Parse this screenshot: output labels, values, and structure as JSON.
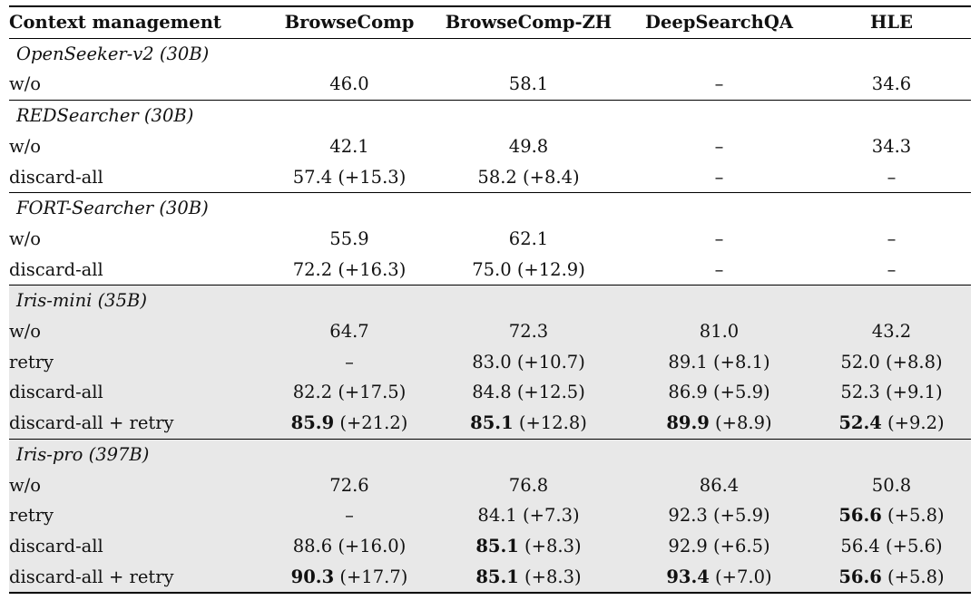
{
  "header": [
    "Context management",
    "BrowseComp",
    "BrowseComp-ZH",
    "DeepSearchQA",
    "HLE"
  ],
  "groups": [
    {
      "name": "OpenSeeker-v2 (30B)",
      "rows": [
        {
          "label": "w/o",
          "cells": [
            {
              "main": "46.0",
              "delta": ""
            },
            {
              "main": "58.1",
              "delta": ""
            },
            {
              "main": "–",
              "delta": ""
            },
            {
              "main": "34.6",
              "delta": ""
            }
          ]
        }
      ]
    },
    {
      "name": "REDSearcher (30B)",
      "rows": [
        {
          "label": "w/o",
          "cells": [
            {
              "main": "42.1",
              "delta": ""
            },
            {
              "main": "49.8",
              "delta": ""
            },
            {
              "main": "–",
              "delta": ""
            },
            {
              "main": "34.3",
              "delta": ""
            }
          ]
        },
        {
          "label": "discard-all",
          "cells": [
            {
              "main": "57.4",
              "delta": " (+15.3)"
            },
            {
              "main": "58.2",
              "delta": " (+8.4)"
            },
            {
              "main": "–",
              "delta": ""
            },
            {
              "main": "–",
              "delta": ""
            }
          ]
        }
      ]
    },
    {
      "name": "FORT-Searcher (30B)",
      "rows": [
        {
          "label": "w/o",
          "cells": [
            {
              "main": "55.9",
              "delta": ""
            },
            {
              "main": "62.1",
              "delta": ""
            },
            {
              "main": "–",
              "delta": ""
            },
            {
              "main": "–",
              "delta": ""
            }
          ]
        },
        {
          "label": "discard-all",
          "cells": [
            {
              "main": "72.2",
              "delta": " (+16.3)"
            },
            {
              "main": "75.0",
              "delta": " (+12.9)"
            },
            {
              "main": "–",
              "delta": ""
            },
            {
              "main": "–",
              "delta": ""
            }
          ]
        }
      ]
    },
    {
      "name": "Iris-mini (35B)",
      "shaded": true,
      "rows": [
        {
          "label": "w/o",
          "cells": [
            {
              "main": "64.7",
              "delta": ""
            },
            {
              "main": "72.3",
              "delta": ""
            },
            {
              "main": "81.0",
              "delta": ""
            },
            {
              "main": "43.2",
              "delta": ""
            }
          ]
        },
        {
          "label": "retry",
          "cells": [
            {
              "main": "–",
              "delta": ""
            },
            {
              "main": "83.0",
              "delta": " (+10.7)"
            },
            {
              "main": "89.1",
              "delta": " (+8.1)"
            },
            {
              "main": "52.0",
              "delta": " (+8.8)"
            }
          ]
        },
        {
          "label": "discard-all",
          "cells": [
            {
              "main": "82.2",
              "delta": " (+17.5)"
            },
            {
              "main": "84.8",
              "delta": " (+12.5)"
            },
            {
              "main": "86.9",
              "delta": " (+5.9)"
            },
            {
              "main": "52.3",
              "delta": " (+9.1)"
            }
          ]
        },
        {
          "label": "discard-all + retry",
          "cells": [
            {
              "main": "85.9",
              "delta": " (+21.2)",
              "bold": true
            },
            {
              "main": "85.1",
              "delta": " (+12.8)",
              "bold": true
            },
            {
              "main": "89.9",
              "delta": " (+8.9)",
              "bold": true
            },
            {
              "main": "52.4",
              "delta": " (+9.2)",
              "bold": true
            }
          ]
        }
      ]
    },
    {
      "name": "Iris-pro (397B)",
      "shaded": true,
      "rows": [
        {
          "label": "w/o",
          "cells": [
            {
              "main": "72.6",
              "delta": ""
            },
            {
              "main": "76.8",
              "delta": ""
            },
            {
              "main": "86.4",
              "delta": ""
            },
            {
              "main": "50.8",
              "delta": ""
            }
          ]
        },
        {
          "label": "retry",
          "cells": [
            {
              "main": "–",
              "delta": ""
            },
            {
              "main": "84.1",
              "delta": " (+7.3)"
            },
            {
              "main": "92.3",
              "delta": " (+5.9)"
            },
            {
              "main": "56.6",
              "delta": " (+5.8)",
              "bold": true
            }
          ]
        },
        {
          "label": "discard-all",
          "cells": [
            {
              "main": "88.6",
              "delta": " (+16.0)"
            },
            {
              "main": "85.1",
              "delta": " (+8.3)",
              "bold": true
            },
            {
              "main": "92.9",
              "delta": " (+6.5)"
            },
            {
              "main": "56.4",
              "delta": " (+5.6)"
            }
          ]
        },
        {
          "label": "discard-all + retry",
          "cells": [
            {
              "main": "90.3",
              "delta": " (+17.7)",
              "bold": true
            },
            {
              "main": "85.1",
              "delta": " (+8.3)",
              "bold": true
            },
            {
              "main": "93.4",
              "delta": " (+7.0)",
              "bold": true
            },
            {
              "main": "56.6",
              "delta": " (+5.8)",
              "bold": true
            }
          ]
        }
      ]
    }
  ]
}
